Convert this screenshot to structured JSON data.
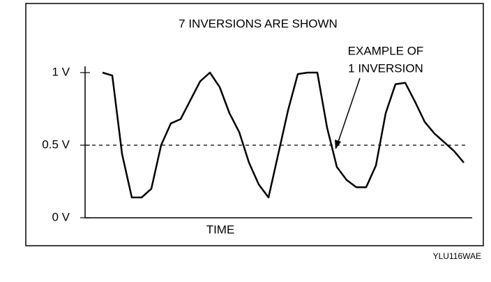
{
  "chart_data": {
    "type": "line",
    "title": "7 INVERSIONS ARE SHOWN",
    "annotations": [
      "EXAMPLE OF",
      "1 INVERSION"
    ],
    "x_label": "TIME",
    "figure_id": "YLU116WAE",
    "categories": [
      null,
      null,
      null,
      null,
      null,
      null,
      null,
      null,
      null,
      null,
      null,
      null,
      null,
      null,
      null,
      null,
      null,
      null,
      null,
      null,
      null,
      null,
      null,
      null,
      null,
      null,
      null,
      null,
      null,
      null,
      null,
      null,
      null,
      null,
      null,
      null,
      null,
      null
    ],
    "values": [
      1.0,
      0.98,
      0.44,
      0.14,
      0.14,
      0.2,
      0.5,
      0.65,
      0.68,
      0.81,
      0.94,
      1.0,
      0.9,
      0.72,
      0.59,
      0.38,
      0.23,
      0.14,
      0.44,
      0.74,
      0.99,
      1.0,
      1.0,
      0.62,
      0.35,
      0.26,
      0.21,
      0.21,
      0.36,
      0.72,
      0.92,
      0.93,
      0.8,
      0.66,
      0.58,
      0.52,
      0.46,
      0.38
    ],
    "color": "#000000",
    "ylim": [
      0,
      1
    ],
    "yticks": [
      {
        "value": 0,
        "label": "0 V"
      },
      {
        "value": 0.5,
        "label": "0.5 V"
      },
      {
        "value": 1,
        "label": "1 V"
      }
    ],
    "threshold": 0.5
  }
}
